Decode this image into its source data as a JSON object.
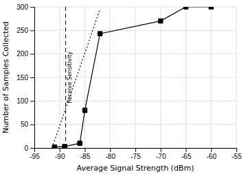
{
  "chart_data": {
    "type": "line",
    "x_label": "Average Signal Strength (dBm)",
    "y_label": "Number of Samples Collected",
    "xlim": [
      -95,
      -55
    ],
    "ylim": [
      0,
      300
    ],
    "xticks": [
      -95,
      -90,
      -85,
      -80,
      -75,
      -70,
      -65,
      -60,
      -55
    ],
    "yticks": [
      0,
      50,
      100,
      150,
      200,
      250,
      300
    ],
    "grid": true,
    "series": [
      {
        "x": [
          -91.5,
          -82
        ],
        "values": [
          0,
          295
        ],
        "color": "#000000",
        "line_style": "dotted"
      },
      {
        "x": [
          -91,
          -89,
          -86,
          -85,
          -82,
          -70,
          -65,
          -60
        ],
        "values": [
          2,
          3,
          10,
          80,
          243,
          270,
          300,
          300
        ],
        "color": "#000000",
        "line_style": "solid",
        "marker": "square"
      }
    ],
    "annotations": [
      {
        "x": -88.8,
        "text": "Receive Sensitivity",
        "line_style": "dashed",
        "color": "#000000"
      }
    ]
  }
}
